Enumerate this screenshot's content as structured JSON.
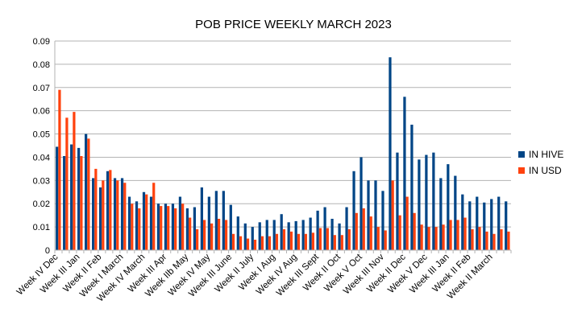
{
  "chart_data": {
    "type": "bar",
    "title": "POB PRICE WEEKLY MARCH 2023",
    "xlabel": "",
    "ylabel": "",
    "ylim": [
      0,
      0.09
    ],
    "yticks": [
      "0",
      "0.01",
      "0.02",
      "0.03",
      "0.04",
      "0.05",
      "0.06",
      "0.07",
      "0.08",
      "0.09"
    ],
    "grid": true,
    "legend_position": "right",
    "tick_labels": [
      "Week IV Dec",
      "Week III Jan",
      "Week II Feb",
      "Week I March",
      "Week IV March",
      "Week III Apr",
      "Week IIb May",
      "Week IV May",
      "Week III June",
      "Week II July",
      "Week I Aug",
      "Week IV Aug",
      "Week III Sept",
      "Week II Oct",
      "Week V Oct",
      "Week III Nov",
      "Week II Dec",
      "Week V Dec",
      "Week III Jan",
      "Week II Feb",
      "Week II March"
    ],
    "series": [
      {
        "name": "IN HIVE",
        "color": "#004586",
        "values": [
          0.0445,
          0.0405,
          0.0455,
          0.044,
          0.05,
          0.031,
          0.027,
          0.034,
          0.031,
          0.031,
          0.023,
          0.021,
          0.025,
          0.023,
          0.02,
          0.02,
          0.02,
          0.023,
          0.018,
          0.0185,
          0.027,
          0.023,
          0.0255,
          0.0255,
          0.0195,
          0.0145,
          0.0115,
          0.01,
          0.012,
          0.013,
          0.013,
          0.0155,
          0.012,
          0.0125,
          0.013,
          0.014,
          0.017,
          0.0185,
          0.0135,
          0.0115,
          0.0185,
          0.034,
          0.04,
          0.03,
          0.03,
          0.0255,
          0.083,
          0.042,
          0.066,
          0.054,
          0.039,
          0.041,
          0.042,
          0.031,
          0.037,
          0.032,
          0.024,
          0.021,
          0.023,
          0.0205,
          0.022,
          0.023,
          0.021
        ]
      },
      {
        "name": "IN USD",
        "color": "#ff420e",
        "values": [
          0.069,
          0.057,
          0.0595,
          0.0405,
          0.048,
          0.035,
          0.03,
          0.0345,
          0.03,
          0.029,
          0.02,
          0.018,
          0.024,
          0.029,
          0.019,
          0.019,
          0.018,
          0.02,
          0.014,
          0.009,
          0.013,
          0.0115,
          0.0135,
          0.013,
          0.007,
          0.006,
          0.005,
          0.0045,
          0.006,
          0.006,
          0.007,
          0.009,
          0.008,
          0.007,
          0.007,
          0.0075,
          0.0095,
          0.0095,
          0.0065,
          0.0065,
          0.009,
          0.016,
          0.018,
          0.0145,
          0.01,
          0.0085,
          0.03,
          0.015,
          0.023,
          0.016,
          0.011,
          0.01,
          0.01,
          0.011,
          0.013,
          0.013,
          0.014,
          0.009,
          0.01,
          0.008,
          0.007,
          0.009,
          0.008
        ]
      }
    ]
  }
}
